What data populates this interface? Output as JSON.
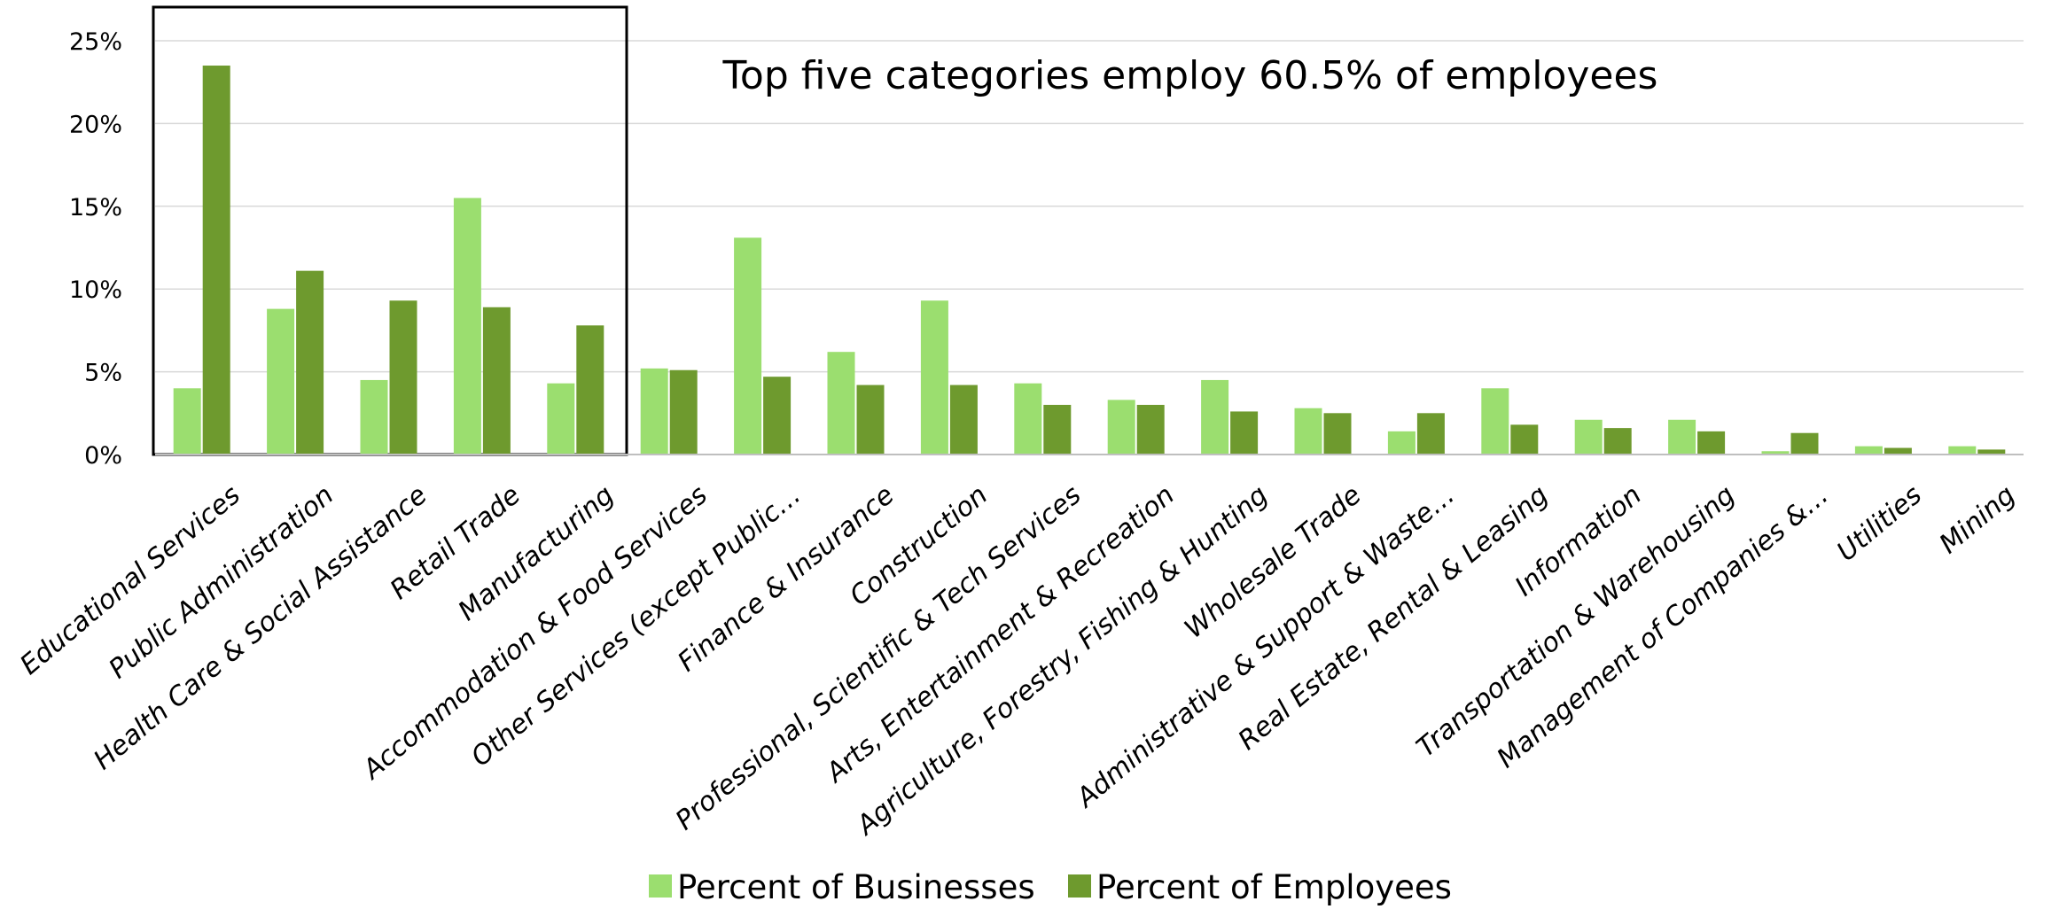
{
  "chart_data": {
    "type": "bar",
    "title": "",
    "xlabel": "",
    "ylabel": "",
    "ylim": [
      0,
      25
    ],
    "y_ticks": [
      "0%",
      "5%",
      "10%",
      "15%",
      "20%",
      "25%"
    ],
    "y_tick_values": [
      0,
      5,
      10,
      15,
      20,
      25
    ],
    "grid": true,
    "legend_placement": "bottom",
    "annotation": "Top five categories employ 60.5% of employees",
    "highlight_first_n": 5,
    "categories": [
      "Educational Services",
      "Public Administration",
      "Health Care & Social Assistance",
      "Retail Trade",
      "Manufacturing",
      "Accommodation & Food Services",
      "Other Services (except Public…",
      "Finance & Insurance",
      "Construction",
      "Professional, Scientific & Tech Services",
      "Arts, Entertainment & Recreation",
      "Agriculture, Forestry, Fishing & Hunting",
      "Wholesale Trade",
      "Administrative & Support & Waste…",
      "Real Estate, Rental & Leasing",
      "Information",
      "Transportation & Warehousing",
      "Management of Companies &…",
      "Utilities",
      "Mining"
    ],
    "series": [
      {
        "name": "Percent of Businesses",
        "color": "#9bde6f",
        "values": [
          4.0,
          8.8,
          4.5,
          15.5,
          4.3,
          5.2,
          13.1,
          6.2,
          9.3,
          4.3,
          3.3,
          4.5,
          2.8,
          1.4,
          4.0,
          2.1,
          2.1,
          0.2,
          0.5,
          0.5
        ]
      },
      {
        "name": "Percent of Employees",
        "color": "#6e9a2e",
        "values": [
          23.5,
          11.1,
          9.3,
          8.9,
          7.8,
          5.1,
          4.7,
          4.2,
          4.2,
          3.0,
          3.0,
          2.6,
          2.5,
          2.5,
          1.8,
          1.6,
          1.4,
          1.3,
          0.4,
          0.3
        ]
      }
    ]
  }
}
